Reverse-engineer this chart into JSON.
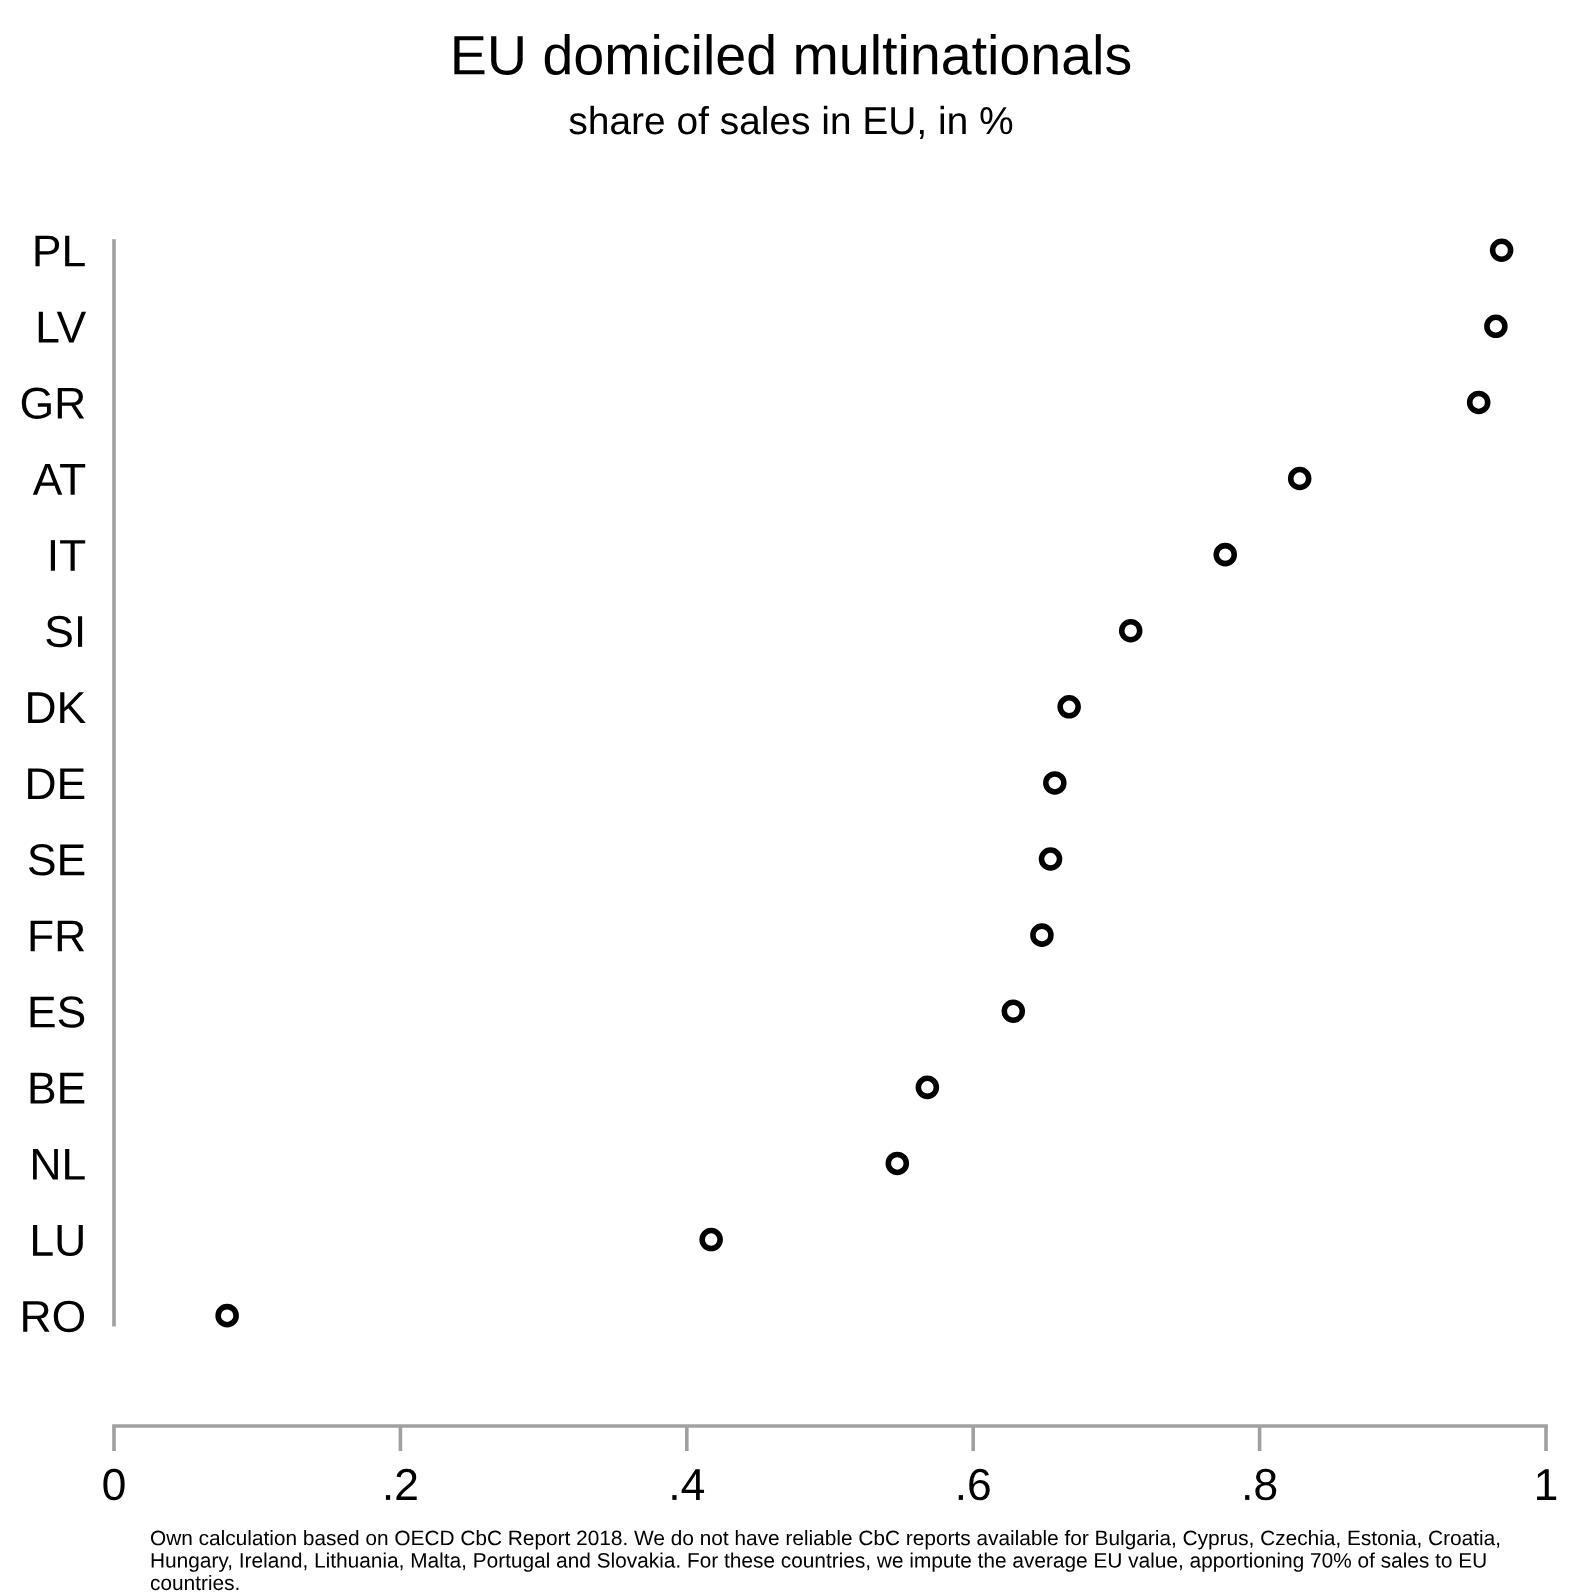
{
  "chart_data": {
    "type": "scatter",
    "orientation": "horizontal",
    "title": "EU domiciled multinationals",
    "subtitle": "share of sales in EU, in %",
    "categories": [
      "PL",
      "LV",
      "GR",
      "AT",
      "IT",
      "SI",
      "DK",
      "DE",
      "SE",
      "FR",
      "ES",
      "BE",
      "NL",
      "LU",
      "RO"
    ],
    "values": [
      0.969,
      0.965,
      0.953,
      0.828,
      0.776,
      0.71,
      0.667,
      0.657,
      0.654,
      0.648,
      0.628,
      0.568,
      0.547,
      0.417,
      0.079
    ],
    "color": "#000000",
    "marker": "circle",
    "xlim": [
      0,
      1
    ],
    "xticks": [
      0,
      {
        "value": 0.2,
        "label": ".2"
      },
      {
        "value": 0.4,
        "label": ".4"
      },
      {
        "value": 0.6,
        "label": ".6"
      },
      {
        "value": 0.8,
        "label": ".8"
      },
      1
    ],
    "annotations": [
      "Own calculation based on OECD CbC Report 2018. We do not have reliable CbC reports available for Bulgaria, Cyprus, Czechia, Estonia, Croatia, Hungary, Ireland, Lithuania, Malta, Portugal and Slovakia. For these countries, we impute the average EU value, apportioning 70% of sales to EU countries."
    ]
  }
}
